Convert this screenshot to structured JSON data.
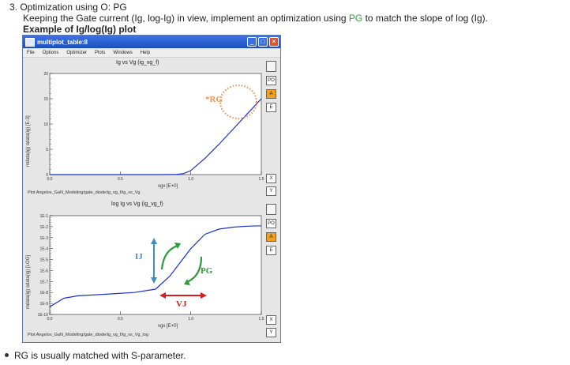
{
  "doc": {
    "heading": "3.  Optimization using O: PG",
    "instruction_pre": "Keeping the Gate current (Ig, log-Ig) in view, implement an optimization using",
    "instruction_pg": "PG",
    "instruction_post": "to match the slope of log (Ig).",
    "example_title": "Example of Ig/log(Ig) plot",
    "bullet": "RG is usually matched with S-parameter."
  },
  "window": {
    "title": "multiplot_table:8",
    "menu": [
      "File",
      "Options",
      "Optimizer",
      "Plots",
      "Windows",
      "Help"
    ],
    "min_icon": "minimize-icon",
    "max_icon": "maximize-icon",
    "close_icon": "close-icon"
  },
  "plot1": {
    "title": "Ig vs Vg (ig_vg_f)",
    "ylabel": "mdata(ig) sdata(ig) [E-3]",
    "xlabel": "vgx [E+0]",
    "path": "Plot Angelov_GaN_Modeling/gate_diode/ig_vg_f/ig_vs_Vg",
    "yticks": [
      "20",
      "15",
      "10",
      "5",
      "0"
    ],
    "xticks": [
      "0.0",
      "0.5",
      "1.0",
      "1.5"
    ],
    "side_buttons": [
      "PO",
      "A",
      "E"
    ],
    "xy_buttons": [
      "X",
      "Y"
    ]
  },
  "plot2": {
    "title": "log Ig vs Vg (ig_vg_f)",
    "ylabel": "mdata(ig) sdata(ig) [LOG]",
    "xlabel": "vgx [E+0]",
    "path": "Plot Angelov_GaN_Modeling/gate_diode/ig_vg_f/ig_vs_Vg_log",
    "yticks": [
      "1E-1",
      "1E-2",
      "1E-3",
      "1E-4",
      "1E-5",
      "1E-6",
      "1E-7",
      "1E-8",
      "1E-9",
      "1E-10"
    ],
    "xticks": [
      "0.0",
      "0.5",
      "1.0",
      "1.5"
    ],
    "side_buttons": [
      "PO",
      "A",
      "E"
    ],
    "xy_buttons": [
      "X",
      "Y"
    ]
  },
  "annotations": {
    "rg": "*RG",
    "ij": "IJ",
    "pg": "PG",
    "vj": "VJ"
  },
  "colors": {
    "accent_orange": "#f0a020",
    "curve_blue": "#1a2fd0",
    "pg_green": "#2e9b3a",
    "vj_red": "#d22020",
    "ij_blue": "#3d8fbf",
    "rg_orange": "#e8955a"
  },
  "chart_data": [
    {
      "type": "line",
      "title": "Ig vs Vg (ig_vg_f)",
      "xlabel": "vgx [E+0]",
      "ylabel": "mdata(ig) sdata(ig) [E-3]",
      "xlim": [
        0,
        1.5
      ],
      "ylim": [
        0,
        20
      ],
      "x": [
        0.0,
        0.8,
        0.9,
        0.95,
        1.0,
        1.1,
        1.2,
        1.3,
        1.4,
        1.5
      ],
      "series": [
        {
          "values": [
            0,
            0,
            0.05,
            0.2,
            0.8,
            3.2,
            6.0,
            9.0,
            12.0,
            15.0
          ]
        }
      ]
    },
    {
      "type": "line",
      "title": "log Ig vs Vg (ig_vg_f)",
      "xlabel": "vgx [E+0]",
      "ylabel": "mdata(ig) sdata(ig) [LOG]",
      "xlim": [
        0,
        1.5
      ],
      "ylim": [
        1e-10,
        0.1
      ],
      "yscale": "log",
      "x": [
        0.0,
        0.1,
        0.2,
        0.4,
        0.6,
        0.75,
        0.85,
        1.0,
        1.1,
        1.2,
        1.3,
        1.4,
        1.5
      ],
      "series": [
        {
          "values": [
            5e-10,
            3e-09,
            5e-09,
            7e-09,
            1e-08,
            2e-08,
            3e-07,
            0.0001,
            0.002,
            0.006,
            0.009,
            0.011,
            0.012
          ]
        }
      ]
    }
  ]
}
